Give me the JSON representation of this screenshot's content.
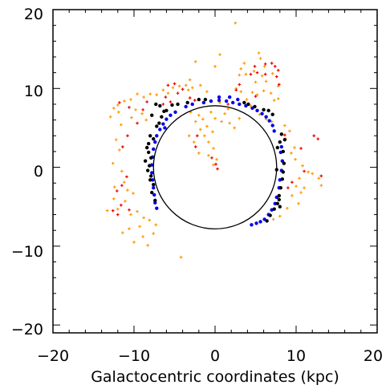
{
  "chart_data": {
    "type": "scatter",
    "xlabel": "Galactocentric coordinates (kpc)",
    "ylabel": "",
    "xlim": [
      -20,
      20
    ],
    "ylim": [
      -21,
      20
    ],
    "x_ticks": [
      "−20",
      "−10",
      "0",
      "10",
      "20"
    ],
    "y_ticks": [
      "−20",
      "−10",
      "0",
      "10",
      "20"
    ],
    "x_tick_values": [
      -20,
      -10,
      0,
      10,
      20
    ],
    "y_tick_values": [
      -20,
      -10,
      0,
      10,
      20
    ],
    "circle": {
      "center": [
        0,
        0
      ],
      "radius": 7.6
    },
    "series": [
      {
        "color": "#ff9900",
        "marker": "plus",
        "points": [
          [
            2.5,
            18.3
          ],
          [
            0.6,
            14.3
          ],
          [
            -2.4,
            13.4
          ],
          [
            0.0,
            12.8
          ],
          [
            5.4,
            14.5
          ],
          [
            5.6,
            13.8
          ],
          [
            3.6,
            13.2
          ],
          [
            3.2,
            12.5
          ],
          [
            3.0,
            11.7
          ],
          [
            4.8,
            12.2
          ],
          [
            6.1,
            12.8
          ],
          [
            7.1,
            11.9
          ],
          [
            7.8,
            10.3
          ],
          [
            7.3,
            8.5
          ],
          [
            7.8,
            8.7
          ],
          [
            6.3,
            10.9
          ],
          [
            5.8,
            11.6
          ],
          [
            3.8,
            11.8
          ],
          [
            5.0,
            10.8
          ],
          [
            2.6,
            10.0
          ],
          [
            3.2,
            9.6
          ],
          [
            4.6,
            9.5
          ],
          [
            5.2,
            9.2
          ],
          [
            6.0,
            9.7
          ],
          [
            6.9,
            9.4
          ],
          [
            -3.1,
            11.1
          ],
          [
            -3.6,
            10.4
          ],
          [
            -2.8,
            10.1
          ],
          [
            -1.8,
            10.4
          ],
          [
            -1.0,
            9.6
          ],
          [
            -3.3,
            9.8
          ],
          [
            -4.4,
            10.3
          ],
          [
            -5.2,
            10.1
          ],
          [
            -5.8,
            9.4
          ],
          [
            -6.4,
            9.8
          ],
          [
            -7.2,
            9.2
          ],
          [
            -8.0,
            9.3
          ],
          [
            -8.8,
            8.9
          ],
          [
            -9.6,
            9.3
          ],
          [
            -10.4,
            8.6
          ],
          [
            -11.2,
            8.4
          ],
          [
            -12.0,
            7.9
          ],
          [
            -12.5,
            7.5
          ],
          [
            -11.9,
            7.0
          ],
          [
            -12.9,
            6.4
          ],
          [
            -11.6,
            5.4
          ],
          [
            -10.3,
            6.3
          ],
          [
            -9.8,
            7.3
          ],
          [
            -9.0,
            6.8
          ],
          [
            -8.5,
            6.0
          ],
          [
            -12.2,
            3.5
          ],
          [
            -11.8,
            2.2
          ],
          [
            -12.6,
            0.5
          ],
          [
            -11.5,
            -0.5
          ],
          [
            -11.2,
            -1.9
          ],
          [
            -12.4,
            -2.5
          ],
          [
            -10.8,
            -2.9
          ],
          [
            -10.1,
            -3.3
          ],
          [
            -11.1,
            -4.3
          ],
          [
            -12.0,
            -5.3
          ],
          [
            -13.3,
            -5.5
          ],
          [
            -10.4,
            -6.0
          ],
          [
            -9.6,
            -5.6
          ],
          [
            -8.8,
            -6.4
          ],
          [
            -8.1,
            -6.7
          ],
          [
            -7.3,
            -7.3
          ],
          [
            -7.6,
            -8.4
          ],
          [
            -8.9,
            -8.8
          ],
          [
            -10.0,
            -9.5
          ],
          [
            -11.4,
            -8.3
          ],
          [
            -8.3,
            -9.9
          ],
          [
            -4.2,
            -11.4
          ],
          [
            -9.3,
            -7.5
          ],
          [
            -10.6,
            -7.8
          ],
          [
            -12.5,
            -4.0
          ],
          [
            -3.0,
            7.0
          ],
          [
            -2.4,
            5.8
          ],
          [
            -1.8,
            4.8
          ],
          [
            -1.3,
            4.0
          ],
          [
            -0.8,
            3.2
          ],
          [
            -0.2,
            2.4
          ],
          [
            -1.0,
            5.2
          ],
          [
            -2.0,
            6.6
          ],
          [
            -2.6,
            3.2
          ],
          [
            -0.8,
            1.5
          ],
          [
            0.2,
            1.0
          ],
          [
            0.0,
            6.2
          ],
          [
            0.8,
            5.8
          ],
          [
            1.2,
            6.8
          ],
          [
            1.8,
            5.6
          ],
          [
            2.4,
            5.0
          ],
          [
            3.0,
            6.2
          ],
          [
            1.6,
            7.4
          ],
          [
            0.6,
            8.2
          ],
          [
            -0.5,
            7.0
          ],
          [
            -1.5,
            6.1
          ],
          [
            -0.3,
            4.5
          ],
          [
            -3.2,
            4.0
          ],
          [
            -2.0,
            1.8
          ],
          [
            -0.2,
            0.3
          ],
          [
            3.9,
            8.6
          ],
          [
            4.4,
            7.8
          ],
          [
            5.5,
            6.7
          ],
          [
            6.3,
            6.1
          ],
          [
            7.0,
            5.8
          ],
          [
            8.6,
            5.3
          ],
          [
            9.2,
            4.6
          ],
          [
            8.7,
            3.6
          ],
          [
            9.8,
            2.5
          ],
          [
            9.4,
            1.8
          ],
          [
            9.9,
            1.0
          ],
          [
            10.8,
            0.2
          ],
          [
            11.5,
            -0.6
          ],
          [
            10.4,
            -1.4
          ],
          [
            10.0,
            -2.4
          ],
          [
            9.5,
            -3.6
          ],
          [
            10.3,
            -4.6
          ],
          [
            8.9,
            -5.2
          ],
          [
            8.0,
            -6.2
          ],
          [
            7.2,
            -6.6
          ],
          [
            10.6,
            -3.2
          ],
          [
            11.0,
            -2.6
          ],
          [
            12.0,
            -0.8
          ],
          [
            12.8,
            -1.4
          ],
          [
            13.1,
            -2.3
          ]
        ]
      },
      {
        "color": "#ee0000",
        "marker": "plus",
        "points": [
          [
            4.4,
            11.8
          ],
          [
            4.9,
            12.8
          ],
          [
            6.2,
            13.1
          ],
          [
            7.4,
            12.8
          ],
          [
            7.8,
            12.3
          ],
          [
            7.9,
            10.5
          ],
          [
            7.6,
            11.5
          ],
          [
            7.0,
            13.2
          ],
          [
            6.2,
            11.8
          ],
          [
            5.2,
            12.0
          ],
          [
            -5.8,
            10.4
          ],
          [
            -5.0,
            10.6
          ],
          [
            -4.6,
            9.4
          ],
          [
            -5.5,
            8.3
          ],
          [
            -6.1,
            8.9
          ],
          [
            -10.6,
            7.6
          ],
          [
            -11.8,
            8.2
          ],
          [
            -8.4,
            8.3
          ],
          [
            -8.9,
            7.3
          ],
          [
            -9.6,
            5.6
          ],
          [
            -10.8,
            4.0
          ],
          [
            -11.4,
            2.6
          ],
          [
            -10.9,
            -1.2
          ],
          [
            -12.1,
            -3.0
          ],
          [
            -12.6,
            -5.5
          ],
          [
            -11.6,
            -4.8
          ],
          [
            -12.0,
            -6.0
          ],
          [
            -10.6,
            -5.4
          ],
          [
            -11.5,
            -2.3
          ],
          [
            -2.4,
            2.6
          ],
          [
            -2.2,
            4.0
          ],
          [
            -2.5,
            8.5
          ],
          [
            -3.1,
            8.8
          ],
          [
            -0.4,
            1.2
          ],
          [
            0.1,
            0.4
          ],
          [
            0.3,
            -0.2
          ],
          [
            1.6,
            8.0
          ],
          [
            2.6,
            9.8
          ],
          [
            3.0,
            10.5
          ],
          [
            12.2,
            4.0
          ],
          [
            12.7,
            3.6
          ],
          [
            10.6,
            2.4
          ],
          [
            9.5,
            -1.9
          ],
          [
            9.0,
            -2.6
          ],
          [
            11.0,
            -0.5
          ],
          [
            13.1,
            -1.1
          ],
          [
            8.6,
            4.1
          ],
          [
            5.0,
            9.0
          ],
          [
            -6.4,
            8.0
          ],
          [
            -4.0,
            9.9
          ]
        ]
      },
      {
        "color": "#0000ee",
        "marker": "dot",
        "points": [
          [
            -7.2,
            -5.2
          ],
          [
            -7.4,
            -4.5
          ],
          [
            -7.5,
            -3.5
          ],
          [
            -7.6,
            -2.6
          ],
          [
            -7.7,
            -1.6
          ],
          [
            -7.8,
            -0.7
          ],
          [
            -7.8,
            0.3
          ],
          [
            -7.7,
            1.3
          ],
          [
            -7.6,
            2.3
          ],
          [
            -7.4,
            3.2
          ],
          [
            -7.2,
            4.0
          ],
          [
            -6.8,
            4.8
          ],
          [
            -6.4,
            5.5
          ],
          [
            -6.0,
            6.1
          ],
          [
            -5.5,
            6.6
          ],
          [
            -4.9,
            7.0
          ],
          [
            -3.6,
            7.7
          ],
          [
            -2.8,
            8.0
          ],
          [
            -1.4,
            8.2
          ],
          [
            -0.5,
            8.4
          ],
          [
            0.5,
            8.5
          ],
          [
            1.4,
            8.4
          ],
          [
            2.2,
            8.2
          ],
          [
            3.0,
            8.0
          ],
          [
            3.8,
            7.8
          ],
          [
            4.6,
            7.5
          ],
          [
            5.2,
            7.2
          ],
          [
            5.8,
            6.8
          ],
          [
            6.3,
            6.4
          ],
          [
            6.7,
            5.9
          ],
          [
            7.1,
            5.3
          ],
          [
            7.3,
            4.6
          ],
          [
            8.2,
            2.6
          ],
          [
            8.1,
            1.9
          ],
          [
            8.3,
            0.8
          ],
          [
            8.2,
            -0.4
          ],
          [
            8.0,
            -1.6
          ],
          [
            7.9,
            -2.6
          ],
          [
            7.6,
            -3.8
          ],
          [
            7.4,
            -4.6
          ],
          [
            7.0,
            -5.4
          ],
          [
            6.6,
            -6.0
          ],
          [
            6.1,
            -6.6
          ],
          [
            5.6,
            -6.9
          ],
          [
            5.1,
            -7.1
          ],
          [
            4.5,
            -7.3
          ],
          [
            0.5,
            8.9
          ],
          [
            1.8,
            8.9
          ],
          [
            2.8,
            8.6
          ],
          [
            -6.2,
            5.0
          ]
        ]
      },
      {
        "color": "#000000",
        "marker": "dot",
        "points": [
          [
            -8.0,
            4.0
          ],
          [
            -8.2,
            3.0
          ],
          [
            -7.6,
            3.6
          ],
          [
            -6.9,
            5.6
          ],
          [
            -7.2,
            5.2
          ],
          [
            -6.6,
            6.4
          ],
          [
            -6.3,
            7.1
          ],
          [
            -6.8,
            7.8
          ],
          [
            -7.3,
            8.0
          ],
          [
            -7.8,
            6.6
          ],
          [
            -6.0,
            7.2
          ],
          [
            -5.3,
            7.9
          ],
          [
            -4.6,
            8.0
          ],
          [
            -3.4,
            8.2
          ],
          [
            -2.0,
            8.6
          ],
          [
            -1.2,
            8.6
          ],
          [
            3.6,
            8.2
          ],
          [
            4.1,
            8.0
          ],
          [
            4.9,
            7.7
          ],
          [
            6.0,
            7.3
          ],
          [
            6.6,
            7.2
          ],
          [
            7.1,
            6.7
          ],
          [
            8.2,
            4.2
          ],
          [
            8.0,
            3.2
          ],
          [
            8.4,
            2.0
          ],
          [
            8.5,
            0.5
          ],
          [
            8.4,
            -0.6
          ],
          [
            8.3,
            -1.5
          ],
          [
            8.1,
            -2.6
          ],
          [
            7.9,
            -3.6
          ],
          [
            7.7,
            -4.6
          ],
          [
            7.3,
            -5.3
          ],
          [
            6.8,
            -6.1
          ],
          [
            7.9,
            -4.1
          ],
          [
            8.0,
            -5.0
          ],
          [
            -7.6,
            -2.2
          ],
          [
            -7.9,
            -1.1
          ],
          [
            -8.1,
            0.2
          ],
          [
            -7.9,
            1.2
          ],
          [
            -8.2,
            1.9
          ],
          [
            -8.4,
            2.5
          ],
          [
            -8.6,
            0.8
          ],
          [
            -8.3,
            -0.4
          ],
          [
            -8.0,
            -1.6
          ],
          [
            -7.8,
            -3.2
          ],
          [
            -7.4,
            -4.2
          ],
          [
            7.6,
            -0.3
          ],
          [
            7.7,
            2.5
          ],
          [
            8.6,
            3.5
          ],
          [
            6.4,
            -6.8
          ]
        ]
      }
    ]
  }
}
